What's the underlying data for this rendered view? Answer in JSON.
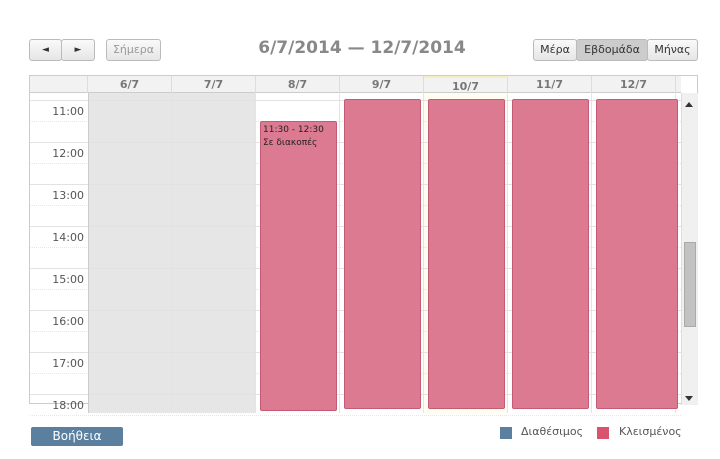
{
  "toolbar": {
    "prev": "◄",
    "next": "►",
    "today": "Σήμερα",
    "title": "6/7/2014 — 12/7/2014",
    "views": [
      "Μέρα",
      "Εβδομάδα",
      "Μήνας"
    ]
  },
  "days": [
    "6/7",
    "7/7",
    "8/7",
    "9/7",
    "10/7",
    "11/7",
    "12/7"
  ],
  "hours": [
    "11:00",
    "12:00",
    "13:00",
    "14:00",
    "15:00",
    "16:00",
    "17:00",
    "18:00"
  ],
  "event": {
    "time": "11:30 - 12:30",
    "title": "Σε διακοπές"
  },
  "footer": {
    "help": "Βοήθεια",
    "legend": [
      "Διαθέσιμος",
      "Κλεισμένος"
    ]
  }
}
